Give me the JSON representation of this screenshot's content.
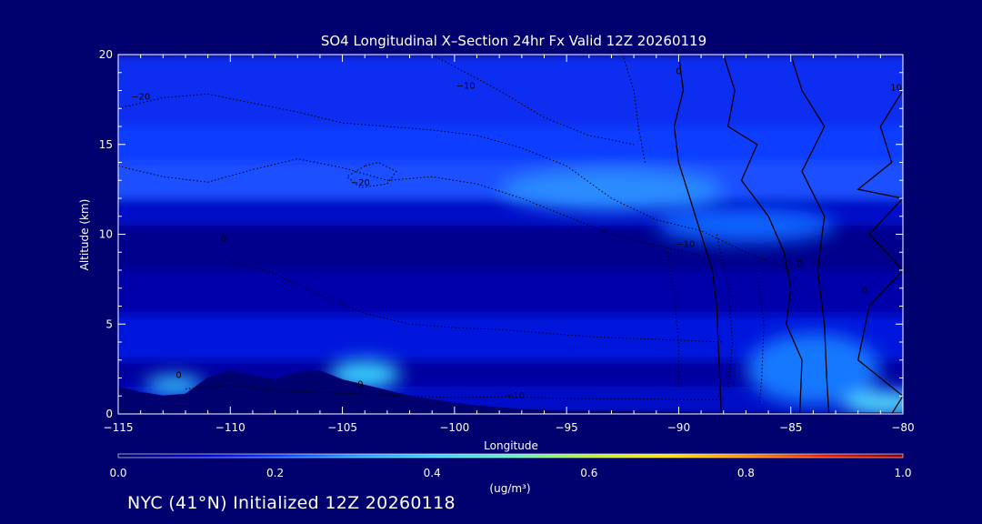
{
  "chart_data": {
    "type": "heatmap",
    "title": "SO4 Longitudinal X–Section 24hr  Fx Valid 12Z 20260119",
    "xlabel": "Longitude",
    "ylabel": "Altitude (km)",
    "xlim": [
      -115,
      -80
    ],
    "ylim": [
      0,
      20
    ],
    "xticks": [
      -115,
      -110,
      -105,
      -100,
      -95,
      -90,
      -85,
      -80
    ],
    "xtick_labels": [
      "−115",
      "−110",
      "−105",
      "−100",
      "−95",
      "−90",
      "−85",
      "−80"
    ],
    "yticks": [
      0,
      5,
      10,
      15,
      20
    ],
    "ytick_labels": [
      "0",
      "5",
      "10",
      "15",
      "20"
    ],
    "colorbar": {
      "label": "(ug/m³)",
      "range": [
        0,
        1
      ],
      "tick_values": [
        0,
        0.2,
        0.4,
        0.6,
        0.8,
        1.0
      ],
      "tick_labels": [
        "0.0",
        "0.2",
        "0.4",
        "0.6",
        "0.8",
        "1.0"
      ],
      "colors": [
        "#00006e",
        "#0000c8",
        "#0a3cff",
        "#1e9bff",
        "#37d2ff",
        "#5af0c8",
        "#b4f03c",
        "#ffe100",
        "#ff8c00",
        "#e11e00",
        "#8c0000"
      ]
    },
    "bands": [
      {
        "y0": 0,
        "y1": 1.5,
        "c": "#0008c8"
      },
      {
        "y0": 1.5,
        "y1": 3.0,
        "c": "#0000a0"
      },
      {
        "y0": 3.0,
        "y1": 5.5,
        "c": "#0014dc"
      },
      {
        "y0": 5.5,
        "y1": 8.0,
        "c": "#0000aa"
      },
      {
        "y0": 8.0,
        "y1": 10.5,
        "c": "#00008c"
      },
      {
        "y0": 10.5,
        "y1": 12.0,
        "c": "#0010c8"
      },
      {
        "y0": 12.0,
        "y1": 14.0,
        "c": "#1e50ff"
      },
      {
        "y0": 14.0,
        "y1": 16.0,
        "c": "#0a3cff"
      },
      {
        "y0": 16.0,
        "y1": 20.0,
        "c": "#0a2df0"
      }
    ],
    "hotspots": [
      {
        "lon": -112.5,
        "alt": 1.6,
        "rx": 1.3,
        "ry": 0.5,
        "c": "#37d2ff"
      },
      {
        "lon": -104.0,
        "alt": 2.2,
        "rx": 1.6,
        "ry": 0.8,
        "c": "#37d2ff"
      },
      {
        "lon": -93.0,
        "alt": 12.5,
        "rx": 5.0,
        "ry": 1.2,
        "c": "#2a8cff"
      },
      {
        "lon": -80.7,
        "alt": 0.6,
        "rx": 2.0,
        "ry": 0.6,
        "c": "#5af0ff"
      },
      {
        "lon": -84.0,
        "alt": 2.5,
        "rx": 3.0,
        "ry": 2.0,
        "c": "#1478ff"
      },
      {
        "lon": -87.0,
        "alt": 10.5,
        "rx": 4.0,
        "ry": 1.0,
        "c": "#0a64ff"
      }
    ],
    "terrain": [
      [
        -115,
        1.5
      ],
      [
        -114,
        1.2
      ],
      [
        -113,
        1.0
      ],
      [
        -112,
        1.1
      ],
      [
        -111,
        2.0
      ],
      [
        -110,
        2.4
      ],
      [
        -109,
        2.1
      ],
      [
        -108,
        1.9
      ],
      [
        -107,
        2.3
      ],
      [
        -106,
        2.4
      ],
      [
        -105,
        1.9
      ],
      [
        -104,
        1.6
      ],
      [
        -103,
        1.3
      ],
      [
        -102,
        1.0
      ],
      [
        -101,
        0.8
      ],
      [
        -100,
        0.6
      ],
      [
        -99,
        0.45
      ],
      [
        -98,
        0.35
      ],
      [
        -97,
        0.25
      ],
      [
        -95,
        0.15
      ],
      [
        -90,
        0.1
      ],
      [
        -85,
        0.05
      ],
      [
        -80,
        0.05
      ]
    ],
    "contours": [
      {
        "style": "solid",
        "points": [
          [
            -90,
            20
          ],
          [
            -89.8,
            18
          ],
          [
            -90.2,
            16
          ],
          [
            -90,
            14
          ],
          [
            -89.5,
            12
          ],
          [
            -89,
            10
          ],
          [
            -88.5,
            8
          ],
          [
            -88.3,
            6
          ],
          [
            -88.2,
            3
          ],
          [
            -88.1,
            0
          ]
        ]
      },
      {
        "style": "solid",
        "points": [
          [
            -88,
            20
          ],
          [
            -87.5,
            18
          ],
          [
            -87.8,
            16
          ],
          [
            -86.5,
            15
          ],
          [
            -87.2,
            13
          ],
          [
            -86,
            11
          ],
          [
            -85.3,
            9
          ],
          [
            -85,
            7
          ],
          [
            -85.2,
            5
          ],
          [
            -84.5,
            3
          ],
          [
            -84.6,
            0
          ]
        ]
      },
      {
        "style": "solid",
        "points": [
          [
            -85,
            20
          ],
          [
            -84.5,
            18
          ],
          [
            -83.5,
            16
          ],
          [
            -84.5,
            13.5
          ],
          [
            -83.5,
            11
          ],
          [
            -83.8,
            8
          ],
          [
            -83.5,
            5
          ],
          [
            -83.4,
            2
          ],
          [
            -83.3,
            0
          ]
        ]
      },
      {
        "style": "solid",
        "points": [
          [
            -80,
            18
          ],
          [
            -81,
            16
          ],
          [
            -80.5,
            14
          ],
          [
            -82,
            12.5
          ],
          [
            -80,
            12
          ],
          [
            -81.5,
            10
          ],
          [
            -80,
            8
          ],
          [
            -81.5,
            6
          ],
          [
            -82,
            3
          ],
          [
            -80,
            1
          ],
          [
            -80.5,
            0
          ]
        ]
      },
      {
        "style": "dotted",
        "points": [
          [
            -115,
            17
          ],
          [
            -113,
            17.6
          ],
          [
            -111,
            17.8
          ],
          [
            -109,
            17.3
          ],
          [
            -107,
            16.8
          ],
          [
            -105,
            16.2
          ],
          [
            -103,
            16.0
          ],
          [
            -101,
            15.8
          ],
          [
            -99,
            15.5
          ],
          [
            -97,
            14.8
          ],
          [
            -95,
            13.8
          ],
          [
            -93,
            12.0
          ],
          [
            -91,
            10.8
          ],
          [
            -89,
            10.2
          ],
          [
            -87,
            9.0
          ],
          [
            -85,
            8.0
          ]
        ]
      },
      {
        "style": "dotted",
        "points": [
          [
            -115,
            13.8
          ],
          [
            -113,
            13.2
          ],
          [
            -111,
            12.9
          ],
          [
            -109,
            13.6
          ],
          [
            -107,
            14.2
          ],
          [
            -105,
            13.7
          ],
          [
            -103,
            13.0
          ],
          [
            -101,
            13.2
          ],
          [
            -99,
            12.8
          ],
          [
            -97,
            12.0
          ],
          [
            -95,
            11.0
          ],
          [
            -93,
            10.0
          ],
          [
            -91,
            9.4
          ],
          [
            -89,
            8.8
          ]
        ]
      },
      {
        "style": "dotted",
        "points": [
          [
            -104,
            13.8
          ],
          [
            -104.8,
            13.2
          ],
          [
            -104.2,
            12.6
          ],
          [
            -103,
            12.8
          ],
          [
            -102.6,
            13.5
          ],
          [
            -103.4,
            14.0
          ],
          [
            -104,
            13.8
          ]
        ]
      },
      {
        "style": "dotted",
        "points": [
          [
            -101,
            20
          ],
          [
            -99.5,
            19
          ],
          [
            -98,
            18
          ],
          [
            -96,
            16.5
          ],
          [
            -94,
            15.5
          ],
          [
            -92,
            15.0
          ]
        ]
      },
      {
        "style": "dotted",
        "points": [
          [
            -110,
            8.5
          ],
          [
            -108,
            7.8
          ],
          [
            -106,
            6.6
          ],
          [
            -104,
            5.6
          ],
          [
            -102,
            5.0
          ],
          [
            -100,
            4.8
          ],
          [
            -98,
            4.7
          ],
          [
            -96,
            4.5
          ],
          [
            -94,
            4.3
          ],
          [
            -92,
            4.2
          ],
          [
            -90,
            4.1
          ],
          [
            -88,
            4.0
          ]
        ]
      },
      {
        "style": "dotted",
        "points": [
          [
            -112,
            1.4
          ],
          [
            -110,
            1.6
          ],
          [
            -108,
            1.3
          ],
          [
            -106,
            1.2
          ],
          [
            -104,
            1.1
          ],
          [
            -102,
            1.0
          ],
          [
            -100,
            0.9
          ],
          [
            -98,
            0.95
          ],
          [
            -96,
            0.9
          ],
          [
            -94,
            0.85
          ],
          [
            -92,
            0.85
          ],
          [
            -90,
            0.8
          ],
          [
            -88,
            0.8
          ]
        ]
      },
      {
        "style": "dotted",
        "points": [
          [
            -92.5,
            20
          ],
          [
            -92,
            18
          ],
          [
            -91.8,
            16
          ],
          [
            -91.5,
            14
          ]
        ]
      },
      {
        "style": "dotted",
        "points": [
          [
            -90.5,
            9
          ],
          [
            -90.2,
            6.5
          ],
          [
            -90,
            4
          ],
          [
            -90,
            1.5
          ]
        ]
      },
      {
        "style": "dotted",
        "points": [
          [
            -88.3,
            10
          ],
          [
            -87.8,
            7
          ],
          [
            -87.6,
            4
          ],
          [
            -87.8,
            1.5
          ]
        ]
      },
      {
        "style": "dotted",
        "points": [
          [
            -86.5,
            8
          ],
          [
            -86.2,
            5
          ],
          [
            -86.3,
            2
          ],
          [
            -86.4,
            0.5
          ]
        ]
      }
    ],
    "contour_labels": [
      {
        "lon": -114.0,
        "alt": 17.5,
        "text": "−20"
      },
      {
        "lon": -104.2,
        "alt": 12.7,
        "text": "−20"
      },
      {
        "lon": -99.5,
        "alt": 18.1,
        "text": "−10"
      },
      {
        "lon": -89.7,
        "alt": 9.3,
        "text": "−10"
      },
      {
        "lon": -97.3,
        "alt": 0.85,
        "text": "−10"
      },
      {
        "lon": -90.0,
        "alt": 18.9,
        "text": "0"
      },
      {
        "lon": -84.6,
        "alt": 8.2,
        "text": "0"
      },
      {
        "lon": -81.7,
        "alt": 6.7,
        "text": "0"
      },
      {
        "lon": -80.3,
        "alt": 18.0,
        "text": "10"
      },
      {
        "lon": -110.3,
        "alt": 9.6,
        "text": "0"
      },
      {
        "lon": -112.3,
        "alt": 2.0,
        "text": "0"
      },
      {
        "lon": -104.2,
        "alt": 1.5,
        "text": "0"
      }
    ]
  },
  "footer": {
    "text": "NYC (41°N) Initialized 12Z 20260118"
  }
}
